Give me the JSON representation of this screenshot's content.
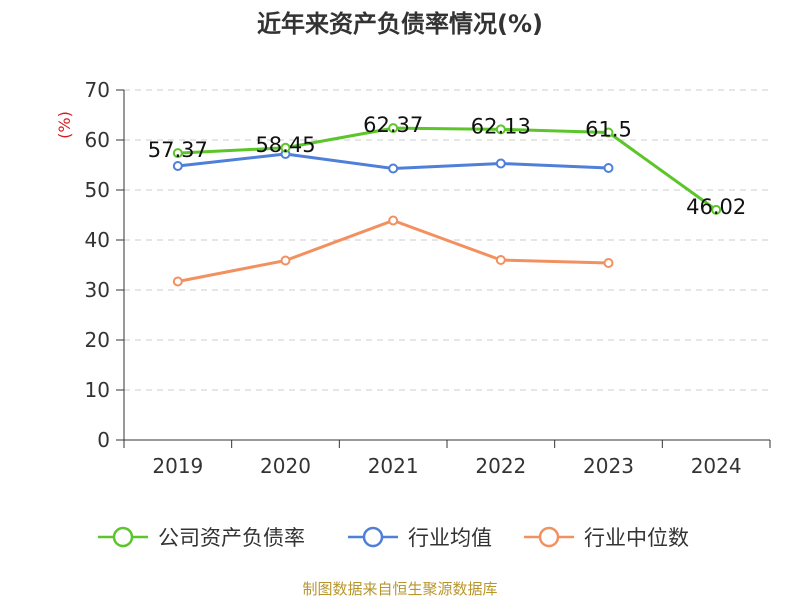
{
  "chart_data": {
    "type": "line",
    "title": "近年来资产负债率情况(%)",
    "ylabel": "(%)",
    "ylim": [
      0,
      70
    ],
    "yticks": [
      0,
      10,
      20,
      30,
      40,
      50,
      60,
      70
    ],
    "categories": [
      "2019",
      "2020",
      "2021",
      "2022",
      "2023",
      "2024"
    ],
    "grid": true,
    "legend_position": "bottom",
    "series": [
      {
        "name": "公司资产负债率",
        "color": "#5bc52a",
        "values": [
          57.37,
          58.45,
          62.37,
          62.13,
          61.5,
          46.02
        ],
        "labels": [
          "57.37",
          "58.45",
          "62.37",
          "62.13",
          "61.5",
          "46.02"
        ]
      },
      {
        "name": "行业均值",
        "color": "#4f7fd9",
        "values": [
          54.8,
          57.2,
          54.3,
          55.3,
          54.4,
          null
        ]
      },
      {
        "name": "行业中位数",
        "color": "#f39060",
        "values": [
          31.7,
          35.9,
          43.9,
          36.0,
          35.4,
          null
        ]
      }
    ]
  },
  "footer": "制图数据来自恒生聚源数据库"
}
